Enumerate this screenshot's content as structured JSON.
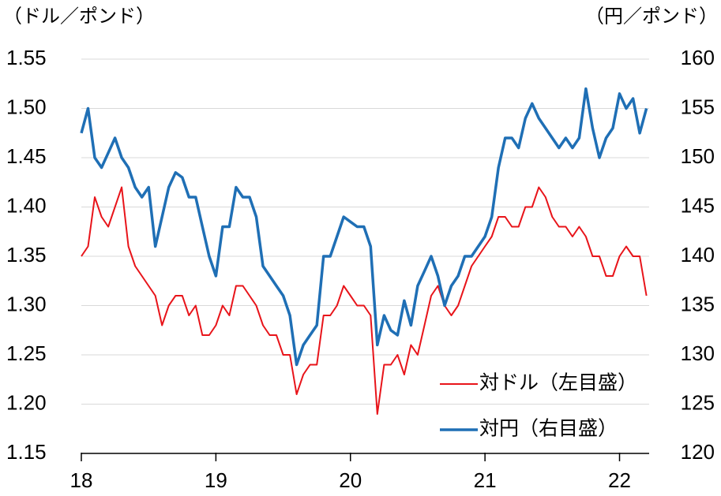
{
  "chart_data": {
    "type": "line",
    "y_label": "（ドル／ポンド）",
    "y2_label": "（円／ポンド）",
    "x": [
      2018.0,
      2018.05,
      2018.1,
      2018.15,
      2018.2,
      2018.25,
      2018.3,
      2018.35,
      2018.4,
      2018.45,
      2018.5,
      2018.55,
      2018.6,
      2018.65,
      2018.7,
      2018.75,
      2018.8,
      2018.85,
      2018.9,
      2018.95,
      2019.0,
      2019.05,
      2019.1,
      2019.15,
      2019.2,
      2019.25,
      2019.3,
      2019.35,
      2019.4,
      2019.45,
      2019.5,
      2019.55,
      2019.6,
      2019.65,
      2019.7,
      2019.75,
      2019.8,
      2019.85,
      2019.9,
      2019.95,
      2020.0,
      2020.05,
      2020.1,
      2020.15,
      2020.2,
      2020.25,
      2020.3,
      2020.35,
      2020.4,
      2020.45,
      2020.5,
      2020.55,
      2020.6,
      2020.65,
      2020.7,
      2020.75,
      2020.8,
      2020.85,
      2020.9,
      2020.95,
      2021.0,
      2021.05,
      2021.1,
      2021.15,
      2021.2,
      2021.25,
      2021.3,
      2021.35,
      2021.4,
      2021.45,
      2021.5,
      2021.55,
      2021.6,
      2021.65,
      2021.7,
      2021.75,
      2021.8,
      2021.85,
      2021.9,
      2021.95,
      2022.0,
      2022.05,
      2022.1,
      2022.15,
      2022.2
    ],
    "series": [
      {
        "name": "対ドル（左目盛）",
        "color": "#e8141a",
        "axis": "y",
        "values": [
          1.35,
          1.36,
          1.41,
          1.39,
          1.38,
          1.4,
          1.42,
          1.36,
          1.34,
          1.33,
          1.32,
          1.31,
          1.28,
          1.3,
          1.31,
          1.31,
          1.29,
          1.3,
          1.27,
          1.27,
          1.28,
          1.3,
          1.29,
          1.32,
          1.32,
          1.31,
          1.3,
          1.28,
          1.27,
          1.27,
          1.25,
          1.25,
          1.21,
          1.23,
          1.24,
          1.24,
          1.29,
          1.29,
          1.3,
          1.32,
          1.31,
          1.3,
          1.3,
          1.29,
          1.19,
          1.24,
          1.24,
          1.25,
          1.23,
          1.26,
          1.25,
          1.28,
          1.31,
          1.32,
          1.3,
          1.29,
          1.3,
          1.32,
          1.34,
          1.35,
          1.36,
          1.37,
          1.39,
          1.39,
          1.38,
          1.38,
          1.4,
          1.4,
          1.42,
          1.41,
          1.39,
          1.38,
          1.38,
          1.37,
          1.38,
          1.37,
          1.35,
          1.35,
          1.33,
          1.33,
          1.35,
          1.36,
          1.35,
          1.35,
          1.31
        ]
      },
      {
        "name": "対円（右目盛）",
        "color": "#1f6fb5",
        "axis": "y2",
        "values": [
          152.5,
          155,
          150,
          149,
          150.5,
          152,
          150,
          149,
          147,
          146,
          147,
          141,
          144,
          147,
          148.5,
          148,
          146,
          146,
          143,
          140,
          138,
          143,
          143,
          147,
          146,
          146,
          144,
          139,
          138,
          137,
          136,
          134,
          129,
          131,
          132,
          133,
          140,
          140,
          142,
          144,
          143.5,
          143,
          143,
          141,
          131,
          134,
          132.5,
          132,
          135.5,
          133,
          137,
          138.5,
          140,
          138,
          135,
          137,
          138,
          140,
          140,
          141,
          142,
          144,
          149,
          152,
          152,
          151,
          154,
          155.5,
          154,
          153,
          152,
          151,
          152,
          151,
          152,
          157,
          153,
          150,
          152,
          153,
          156.5,
          155,
          156,
          152.5,
          155
        ]
      }
    ],
    "xlim": [
      2018,
      2022.22
    ],
    "xticks": [
      {
        "value": 2018,
        "label": "18"
      },
      {
        "value": 2019,
        "label": "19"
      },
      {
        "value": 2020,
        "label": "20"
      },
      {
        "value": 2021,
        "label": "21"
      },
      {
        "value": 2022,
        "label": "22"
      }
    ],
    "ylim": [
      1.15,
      1.55
    ],
    "yticks": [
      1.15,
      {
        "value": 1.2,
        "label": "1.20"
      },
      1.25,
      {
        "value": 1.3,
        "label": "1.30"
      },
      1.35,
      {
        "value": 1.4,
        "label": "1.40"
      },
      1.45,
      {
        "value": 1.5,
        "label": "1.50"
      },
      1.55
    ],
    "y2lim": [
      120,
      160
    ],
    "y2ticks": [
      120,
      125,
      130,
      135,
      140,
      145,
      150,
      155,
      160
    ],
    "grid": true,
    "legend": "lower right"
  }
}
